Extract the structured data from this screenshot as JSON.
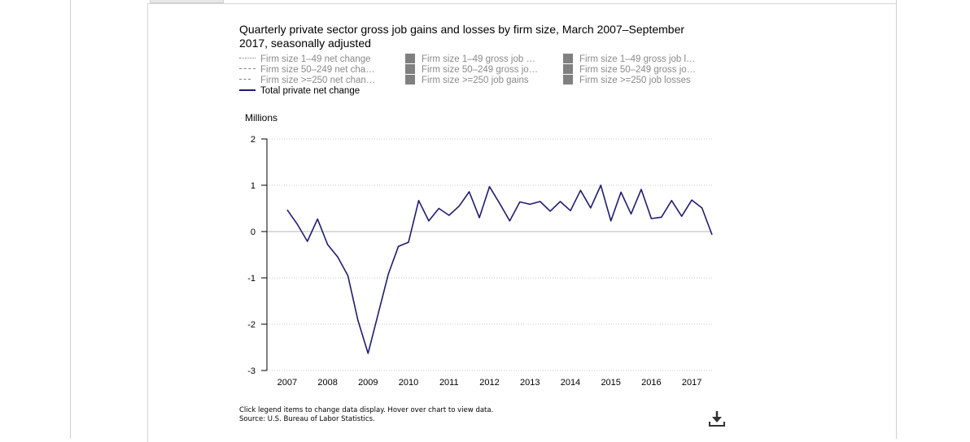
{
  "title": "Quarterly private sector gross job gains and losses by firm size, March 2007–September 2017, seasonally adjusted",
  "legend": [
    {
      "label": "Firm size 1–49 net change",
      "style": "dotted",
      "color": "#808080",
      "active": false
    },
    {
      "label": "Firm size 50–249 net cha…",
      "style": "dashed",
      "color": "#808080",
      "active": false
    },
    {
      "label": "Firm size >=250 net chan…",
      "style": "dashdot",
      "color": "#808080",
      "active": false
    },
    {
      "label": "Total private net change",
      "style": "solid",
      "color": "#1f1c73",
      "active": true
    },
    {
      "label": "Firm size 1–49 gross job …",
      "style": "box",
      "color": "#808080",
      "active": false
    },
    {
      "label": "Firm size 50–249 gross jo…",
      "style": "box",
      "color": "#808080",
      "active": false
    },
    {
      "label": "Firm size >=250 job gains",
      "style": "box",
      "color": "#808080",
      "active": false
    },
    {
      "label": "Firm size 1–49 gross job l…",
      "style": "box",
      "color": "#808080",
      "active": false
    },
    {
      "label": "Firm size 50–249 gross jo…",
      "style": "box",
      "color": "#808080",
      "active": false
    },
    {
      "label": "Firm size >=250 job losses",
      "style": "box",
      "color": "#808080",
      "active": false
    }
  ],
  "footer": {
    "note": "Click legend items to change data display. Hover over chart to view data.",
    "source": "Source: U.S. Bureau of Labor Statistics."
  },
  "chart_data": {
    "type": "line",
    "title": "Quarterly private sector gross job gains and losses by firm size, March 2007–September 2017, seasonally adjusted",
    "ylabel": "Millions",
    "ylim": [
      -3,
      2
    ],
    "yticks": [
      "2",
      "1",
      "0",
      "-1",
      "-2",
      "-3"
    ],
    "xlim": [
      2006.5,
      2017.5
    ],
    "xticks": [
      "2007",
      "2008",
      "2009",
      "2010",
      "2011",
      "2012",
      "2013",
      "2014",
      "2015",
      "2016",
      "2017"
    ],
    "grid": true,
    "series": [
      {
        "name": "Total private net change",
        "color": "#1f1c73",
        "x": [
          "2007-03",
          "2007-06",
          "2007-09",
          "2007-12",
          "2008-03",
          "2008-06",
          "2008-09",
          "2008-12",
          "2009-03",
          "2009-06",
          "2009-09",
          "2009-12",
          "2010-03",
          "2010-06",
          "2010-09",
          "2010-12",
          "2011-03",
          "2011-06",
          "2011-09",
          "2011-12",
          "2012-03",
          "2012-06",
          "2012-09",
          "2012-12",
          "2013-03",
          "2013-06",
          "2013-09",
          "2013-12",
          "2014-03",
          "2014-06",
          "2014-09",
          "2014-12",
          "2015-03",
          "2015-06",
          "2015-09",
          "2015-12",
          "2016-03",
          "2016-06",
          "2016-09",
          "2016-12",
          "2017-03",
          "2017-06",
          "2017-09"
        ],
        "values": [
          0.47,
          0.16,
          -0.21,
          0.27,
          -0.28,
          -0.55,
          -0.95,
          -1.92,
          -2.63,
          -1.77,
          -0.92,
          -0.32,
          -0.23,
          0.67,
          0.23,
          0.5,
          0.35,
          0.55,
          0.86,
          0.3,
          0.97,
          0.61,
          0.23,
          0.64,
          0.59,
          0.65,
          0.44,
          0.65,
          0.45,
          0.89,
          0.51,
          1.0,
          0.23,
          0.85,
          0.38,
          0.91,
          0.28,
          0.31,
          0.67,
          0.33,
          0.68,
          0.51,
          -0.07
        ]
      }
    ]
  }
}
